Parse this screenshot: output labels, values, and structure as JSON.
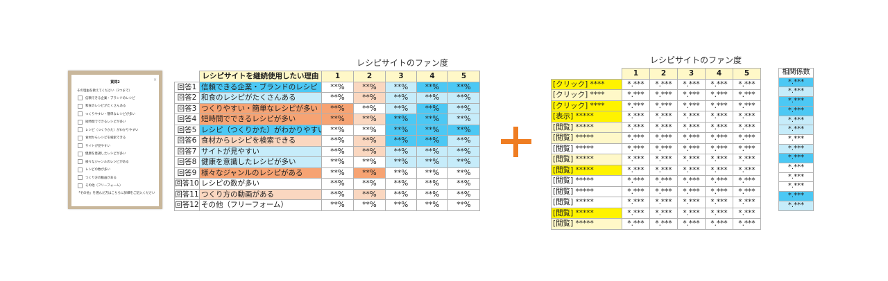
{
  "survey": {
    "title": "質問2",
    "close": "×",
    "question": "その理由を教えてください（3つまで）",
    "options": [
      "信頼できる企業・ブランドのレシピ",
      "和食のレシピがたくさんある",
      "つくりやすい・簡単なレシピが多い",
      "短時間でできるレシピが多い",
      "レシピ（つくりかた）がわかりやすい",
      "食材からレシピを検索できる",
      "サイトが見やすい",
      "健康を意識したレシピが多い",
      "様々なジャンルのレシピがある",
      "レシピの数が多い",
      "つくり方の動画がある",
      "その他（フリーフォーム）"
    ],
    "note": "「その他」を選んだ方はこちらに詳細をご記入ください"
  },
  "left_table": {
    "title": "レシピサイトのファン度",
    "reason_header": "レシピサイトを継続使用したい理由",
    "columns": [
      "1",
      "2",
      "3",
      "4",
      "5"
    ],
    "rows": [
      {
        "label": "回答1",
        "reason": "信頼できる企業・ブランドのレシピ",
        "reason_color": "blue",
        "values": [
          "**%",
          "**%",
          "**%",
          "**%",
          "**%"
        ],
        "colors": [
          "white",
          "lorange",
          "lblue",
          "blue",
          "blue"
        ]
      },
      {
        "label": "回答2",
        "reason": "和食のレシピがたくさんある",
        "reason_color": "lblue",
        "values": [
          "**%",
          "**%",
          "**%",
          "**%",
          "**%"
        ],
        "colors": [
          "white",
          "lorange",
          "lblue",
          "lblue",
          "lblue"
        ]
      },
      {
        "label": "回答3",
        "reason": "つくりやすい・簡単なレシピが多い",
        "reason_color": "orange",
        "values": [
          "**%",
          "**%",
          "**%",
          "**%",
          "**%"
        ],
        "colors": [
          "orange",
          "white",
          "lblue",
          "blue",
          "lblue"
        ]
      },
      {
        "label": "回答4",
        "reason": "短時間でできるレシピが多い",
        "reason_color": "orange",
        "values": [
          "**%",
          "**%",
          "**%",
          "**%",
          "**%"
        ],
        "colors": [
          "orange",
          "lorange",
          "blue",
          "blue",
          "lblue"
        ]
      },
      {
        "label": "回答5",
        "reason": "レシピ（つくりかた）がわかりやすい",
        "reason_color": "blue",
        "values": [
          "**%",
          "**%",
          "**%",
          "**%",
          "**%"
        ],
        "colors": [
          "white",
          "white",
          "blue",
          "blue",
          "blue"
        ]
      },
      {
        "label": "回答6",
        "reason": "食材からレシピを検索できる",
        "reason_color": "lorange",
        "values": [
          "**%",
          "**%",
          "**%",
          "**%",
          "**%"
        ],
        "colors": [
          "white",
          "lorange",
          "blue",
          "blue",
          "lblue"
        ]
      },
      {
        "label": "回答7",
        "reason": "サイトが見やすい",
        "reason_color": "lblue",
        "values": [
          "**%",
          "**%",
          "**%",
          "**%",
          "**%"
        ],
        "colors": [
          "white",
          "lorange",
          "lblue",
          "lblue",
          "lblue"
        ]
      },
      {
        "label": "回答8",
        "reason": "健康を意識したレシピが多い",
        "reason_color": "lblue",
        "values": [
          "**%",
          "**%",
          "**%",
          "**%",
          "**%"
        ],
        "colors": [
          "white",
          "white",
          "lblue",
          "lblue",
          "lblue"
        ]
      },
      {
        "label": "回答9",
        "reason": "様々なジャンルのレシピがある",
        "reason_color": "orange",
        "values": [
          "**%",
          "**%",
          "**%",
          "**%",
          "**%"
        ],
        "colors": [
          "white",
          "orange",
          "white",
          "white",
          "white"
        ]
      },
      {
        "label": "回答10",
        "reason": "レシピの数が多い",
        "reason_color": "white",
        "values": [
          "**%",
          "**%",
          "**%",
          "**%",
          "**%"
        ],
        "colors": [
          "white",
          "white",
          "white",
          "white",
          "white"
        ]
      },
      {
        "label": "回答11",
        "reason": "つくり方の動画がある",
        "reason_color": "lorange",
        "values": [
          "**%",
          "**%",
          "**%",
          "**%",
          "**%"
        ],
        "colors": [
          "white",
          "lorange",
          "white",
          "white",
          "white"
        ]
      },
      {
        "label": "回答12",
        "reason": "その他（フリーフォーム）",
        "reason_color": "white",
        "values": [
          "**%",
          "**%",
          "**%",
          "**%",
          "**%"
        ],
        "colors": [
          "white",
          "white",
          "white",
          "white",
          "white"
        ]
      }
    ]
  },
  "plus": {
    "color": "#ef7d22"
  },
  "right_table": {
    "title": "レシピサイトのファン度",
    "columns": [
      "1",
      "2",
      "3",
      "4",
      "5"
    ],
    "corr_header": "相関係数",
    "rows": [
      {
        "label": "[クリック] ****",
        "label_color": "yellow",
        "values": [
          "*.***",
          "*.***",
          "*.***",
          "*.***",
          "*.***"
        ],
        "corr": "*.***",
        "corr_color": "blue"
      },
      {
        "label": "[クリック] ****",
        "label_color": "lyellow",
        "values": [
          "*.***",
          "*.***",
          "*.***",
          "*.***",
          "*.***"
        ],
        "corr": "*.***",
        "corr_color": "lblue"
      },
      {
        "label": "[クリック] ****",
        "label_color": "yellow",
        "values": [
          "*.***",
          "*.***",
          "*.***",
          "*.***",
          "*.***"
        ],
        "corr": "*.***",
        "corr_color": "blue"
      },
      {
        "label": "[表示] *****",
        "label_color": "yellow",
        "values": [
          "*.***",
          "*.***",
          "*.***",
          "*.***",
          "*.***"
        ],
        "corr": "*.***",
        "corr_color": "blue"
      },
      {
        "label": "[閲覧] *****",
        "label_color": "lyellow",
        "values": [
          "*.***",
          "*.***",
          "*.***",
          "*.***",
          "*.***"
        ],
        "corr": "*.***",
        "corr_color": "lblue"
      },
      {
        "label": "[閲覧] *****",
        "label_color": "lyellow",
        "values": [
          "*.***",
          "*.***",
          "*.***",
          "*.***",
          "*.***"
        ],
        "corr": "*.***",
        "corr_color": "lblue"
      },
      {
        "label": "[閲覧] *****",
        "label_color": "white",
        "values": [
          "*.***",
          "*.***",
          "*.***",
          "*.***",
          "*.***"
        ],
        "corr": "*.***",
        "corr_color": "white"
      },
      {
        "label": "[閲覧] *****",
        "label_color": "lyellow",
        "values": [
          "*.***",
          "*.***",
          "*.***",
          "*.***",
          "*.***"
        ],
        "corr": "*.***",
        "corr_color": "lblue"
      },
      {
        "label": "[閲覧] *****",
        "label_color": "yellow",
        "values": [
          "*.***",
          "*.***",
          "*.***",
          "*.***",
          "*.***"
        ],
        "corr": "*.***",
        "corr_color": "blue"
      },
      {
        "label": "[閲覧] *****",
        "label_color": "white",
        "values": [
          "*.***",
          "*.***",
          "*.***",
          "*.***",
          "*.***"
        ],
        "corr": "*.***",
        "corr_color": "white"
      },
      {
        "label": "[閲覧] *****",
        "label_color": "white",
        "values": [
          "*.***",
          "*.***",
          "*.***",
          "*.***",
          "*.***"
        ],
        "corr": "*.***",
        "corr_color": "white"
      },
      {
        "label": "[閲覧] *****",
        "label_color": "white",
        "values": [
          "*.***",
          "*.***",
          "*.***",
          "*.***",
          "*.***"
        ],
        "corr": "*.***",
        "corr_color": "white"
      },
      {
        "label": "[閲覧] *****",
        "label_color": "yellow",
        "values": [
          "*.***",
          "*.***",
          "*.***",
          "*.***",
          "*.***"
        ],
        "corr": "*.***",
        "corr_color": "blue"
      },
      {
        "label": "[閲覧] *****",
        "label_color": "lyellow",
        "values": [
          "*.***",
          "*.***",
          "*.***",
          "*.***",
          "*.***"
        ],
        "corr": "*.***",
        "corr_color": "lblue"
      }
    ]
  }
}
